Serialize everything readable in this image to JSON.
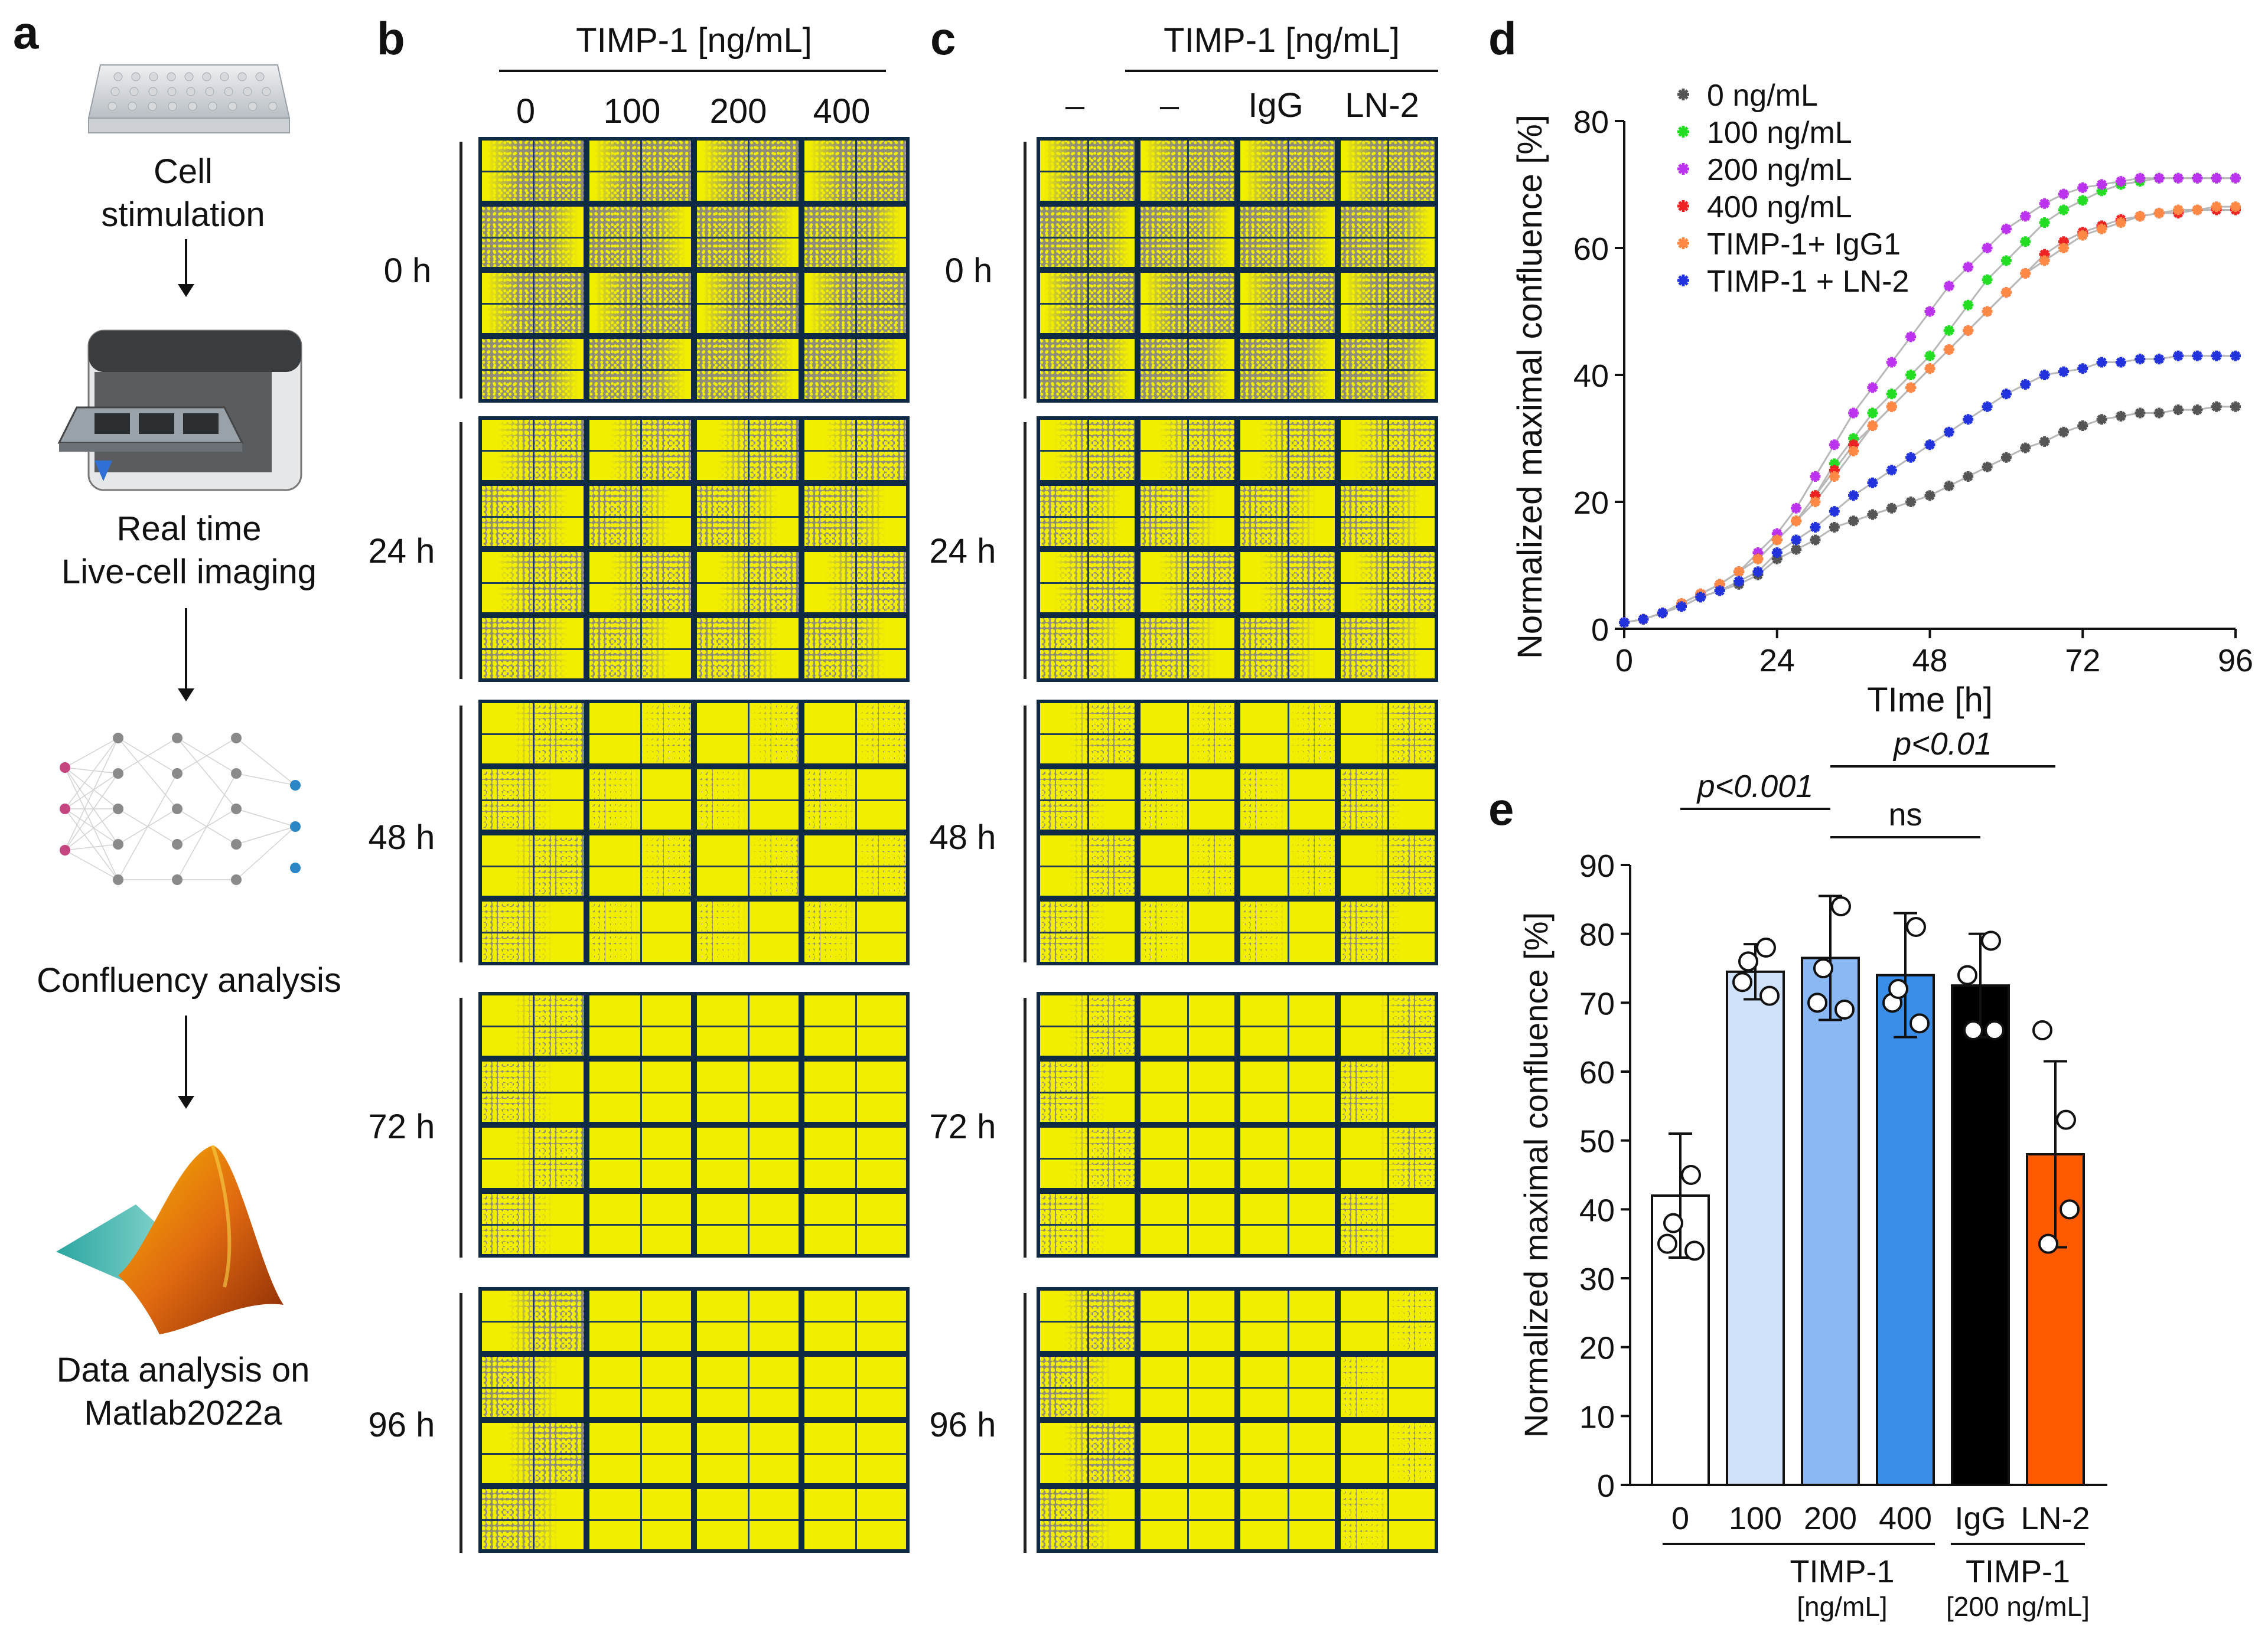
{
  "panel_a": {
    "letter": "a",
    "steps": [
      {
        "text": "Cell\nstimulation",
        "icon": "well-plate-icon"
      },
      {
        "text": "Real time\nLive-cell imaging",
        "icon": "imaging-device-icon"
      },
      {
        "text": "Confluency analysis",
        "icon": "neural-network-icon"
      },
      {
        "text": "Data analysis on\nMatlab2022a",
        "icon": "matlab-logo-icon"
      }
    ]
  },
  "panel_b": {
    "letter": "b",
    "header": "TIMP-1 [ng/mL]",
    "columns": [
      "0",
      "100",
      "200",
      "400"
    ],
    "rows": [
      "0 h",
      "24 h",
      "48 h",
      "72 h",
      "96 h"
    ],
    "fill_level": [
      [
        0.35,
        0.35,
        0.35,
        0.35
      ],
      [
        0.45,
        0.5,
        0.5,
        0.5
      ],
      [
        0.6,
        0.75,
        0.8,
        0.75
      ],
      [
        0.6,
        0.95,
        1.0,
        0.95
      ],
      [
        0.55,
        1.0,
        1.0,
        0.95
      ]
    ]
  },
  "panel_c": {
    "letter": "c",
    "header": "TIMP-1 [ng/mL]",
    "columns": [
      "–",
      "–",
      "IgG",
      "LN-2"
    ],
    "rows": [
      "0 h",
      "24 h",
      "48 h",
      "72 h",
      "96 h"
    ],
    "fill_level": [
      [
        0.35,
        0.35,
        0.35,
        0.35
      ],
      [
        0.45,
        0.5,
        0.5,
        0.45
      ],
      [
        0.6,
        0.75,
        0.8,
        0.65
      ],
      [
        0.6,
        1.0,
        0.95,
        0.7
      ],
      [
        0.55,
        1.0,
        1.0,
        0.75
      ]
    ]
  },
  "colors": {
    "yellow": "#f2ee00",
    "grey": "#8f8d7a",
    "grid_border": "#0f2a44"
  },
  "chart_data": [
    {
      "type": "scatter",
      "panel_letter": "d",
      "title": "",
      "xlabel": "TIme [h]",
      "ylabel": "Normalized maximal confluence [%]",
      "xlim": [
        0,
        96
      ],
      "ylim": [
        0,
        80
      ],
      "xticks": [
        0,
        24,
        48,
        72,
        96
      ],
      "yticks": [
        0,
        20,
        40,
        60,
        80
      ],
      "series": [
        {
          "name": "0 ng/mL",
          "color": "#555555",
          "x": [
            0,
            3,
            6,
            9,
            12,
            15,
            18,
            21,
            24,
            27,
            30,
            33,
            36,
            39,
            42,
            45,
            48,
            51,
            54,
            57,
            60,
            63,
            66,
            69,
            72,
            75,
            78,
            81,
            84,
            87,
            90,
            93,
            96
          ],
          "y": [
            1,
            1.5,
            2.5,
            3.5,
            5,
            6,
            7,
            8.5,
            11,
            12.5,
            14,
            16,
            17,
            18,
            19,
            20,
            21,
            22.5,
            24,
            25.5,
            27,
            28.5,
            29.5,
            31,
            32,
            33,
            33.5,
            34,
            34,
            34.5,
            34.5,
            35,
            35
          ]
        },
        {
          "name": "100 ng/mL",
          "color": "#22dd22",
          "x": [
            0,
            3,
            6,
            9,
            12,
            15,
            18,
            21,
            24,
            27,
            30,
            33,
            36,
            39,
            42,
            45,
            48,
            51,
            54,
            57,
            60,
            63,
            66,
            69,
            72,
            75,
            78,
            81,
            84,
            87,
            90,
            93,
            96
          ],
          "y": [
            1,
            1.5,
            2.5,
            4,
            5.5,
            7,
            9,
            11,
            14,
            17,
            21,
            26,
            30,
            34,
            37,
            40,
            43,
            47,
            51,
            55,
            58,
            61,
            64,
            66,
            67.5,
            69,
            70,
            70.5,
            71,
            71,
            71,
            71,
            71
          ]
        },
        {
          "name": "200 ng/mL",
          "color": "#bb33ee",
          "x": [
            0,
            3,
            6,
            9,
            12,
            15,
            18,
            21,
            24,
            27,
            30,
            33,
            36,
            39,
            42,
            45,
            48,
            51,
            54,
            57,
            60,
            63,
            66,
            69,
            72,
            75,
            78,
            81,
            84,
            87,
            90,
            93,
            96
          ],
          "y": [
            1,
            1.5,
            2.5,
            4,
            5.5,
            7,
            9,
            12,
            15,
            19,
            24,
            29,
            34,
            38,
            42,
            46,
            50,
            54,
            57,
            60,
            63,
            65,
            67,
            68.5,
            69.5,
            70,
            70.5,
            71,
            71,
            71,
            71,
            71,
            71
          ]
        },
        {
          "name": "400 ng/mL",
          "color": "#ee2222",
          "x": [
            0,
            3,
            6,
            9,
            12,
            15,
            18,
            21,
            24,
            27,
            30,
            33,
            36,
            39,
            42,
            45,
            48,
            51,
            54,
            57,
            60,
            63,
            66,
            69,
            72,
            75,
            78,
            81,
            84,
            87,
            90,
            93,
            96
          ],
          "y": [
            1,
            1.5,
            2.5,
            4,
            5.5,
            7,
            9,
            11,
            14,
            17,
            21,
            25,
            29,
            32,
            35,
            38,
            41,
            44,
            47,
            50,
            53,
            56,
            59,
            61,
            62.5,
            63.5,
            64.5,
            65,
            65.5,
            65.5,
            66,
            66,
            66
          ]
        },
        {
          "name": "TIMP-1+ IgG1",
          "color": "#ff8844",
          "x": [
            0,
            3,
            6,
            9,
            12,
            15,
            18,
            21,
            24,
            27,
            30,
            33,
            36,
            39,
            42,
            45,
            48,
            51,
            54,
            57,
            60,
            63,
            66,
            69,
            72,
            75,
            78,
            81,
            84,
            87,
            90,
            93,
            96
          ],
          "y": [
            1,
            1.5,
            2.5,
            4,
            5.5,
            7,
            9,
            11,
            14,
            17,
            20,
            24,
            28,
            32,
            35,
            38,
            41,
            44,
            47,
            50,
            53,
            56,
            58,
            60,
            62,
            63,
            64,
            65,
            65.5,
            66,
            66,
            66.5,
            66.5
          ]
        },
        {
          "name": "TIMP-1 + LN-2",
          "color": "#2233dd",
          "x": [
            0,
            3,
            6,
            9,
            12,
            15,
            18,
            21,
            24,
            27,
            30,
            33,
            36,
            39,
            42,
            45,
            48,
            51,
            54,
            57,
            60,
            63,
            66,
            69,
            72,
            75,
            78,
            81,
            84,
            87,
            90,
            93,
            96
          ],
          "y": [
            1,
            1.5,
            2.5,
            3.5,
            5,
            6,
            7.5,
            9,
            12,
            14,
            16,
            18.5,
            21,
            23,
            25,
            27,
            29,
            31,
            33,
            35,
            37,
            38.5,
            40,
            40.5,
            41,
            42,
            42,
            42.5,
            42.5,
            43,
            43,
            43,
            43
          ]
        }
      ]
    },
    {
      "type": "bar",
      "panel_letter": "e",
      "xlabel": "",
      "ylabel": "Normalized maximal confluence [%]",
      "ylim": [
        0,
        90
      ],
      "yticks": [
        0,
        10,
        20,
        30,
        40,
        50,
        60,
        70,
        80,
        90
      ],
      "categories": [
        "0",
        "100",
        "200",
        "400",
        "IgG",
        "LN-2"
      ],
      "values": [
        42,
        74.5,
        76.5,
        74,
        72.5,
        48
      ],
      "errors": [
        9,
        4,
        9,
        9,
        7.5,
        13.5
      ],
      "colors": [
        "#ffffff",
        "#cfe2f9",
        "#8ab8f2",
        "#3a8ee8",
        "#000000",
        "#ff5a00"
      ],
      "points": [
        [
          35,
          45,
          38,
          34
        ],
        [
          73,
          78,
          76,
          71
        ],
        [
          70,
          84,
          75,
          69
        ],
        [
          70,
          81,
          72,
          67
        ],
        [
          74,
          79,
          66,
          66
        ],
        [
          66,
          53,
          35,
          40
        ]
      ],
      "group_labels": [
        {
          "line1": "TIMP-1",
          "line2": "[ng/mL]"
        },
        {
          "line1": "TIMP-1",
          "line2": "[200 ng/mL]"
        }
      ],
      "annotations": [
        {
          "text": "p<0.001",
          "from": "0",
          "to": "200"
        },
        {
          "text": "p<0.01",
          "from": "200",
          "to": "LN-2"
        },
        {
          "text": "ns",
          "from": "200",
          "to": "IgG"
        }
      ]
    }
  ]
}
